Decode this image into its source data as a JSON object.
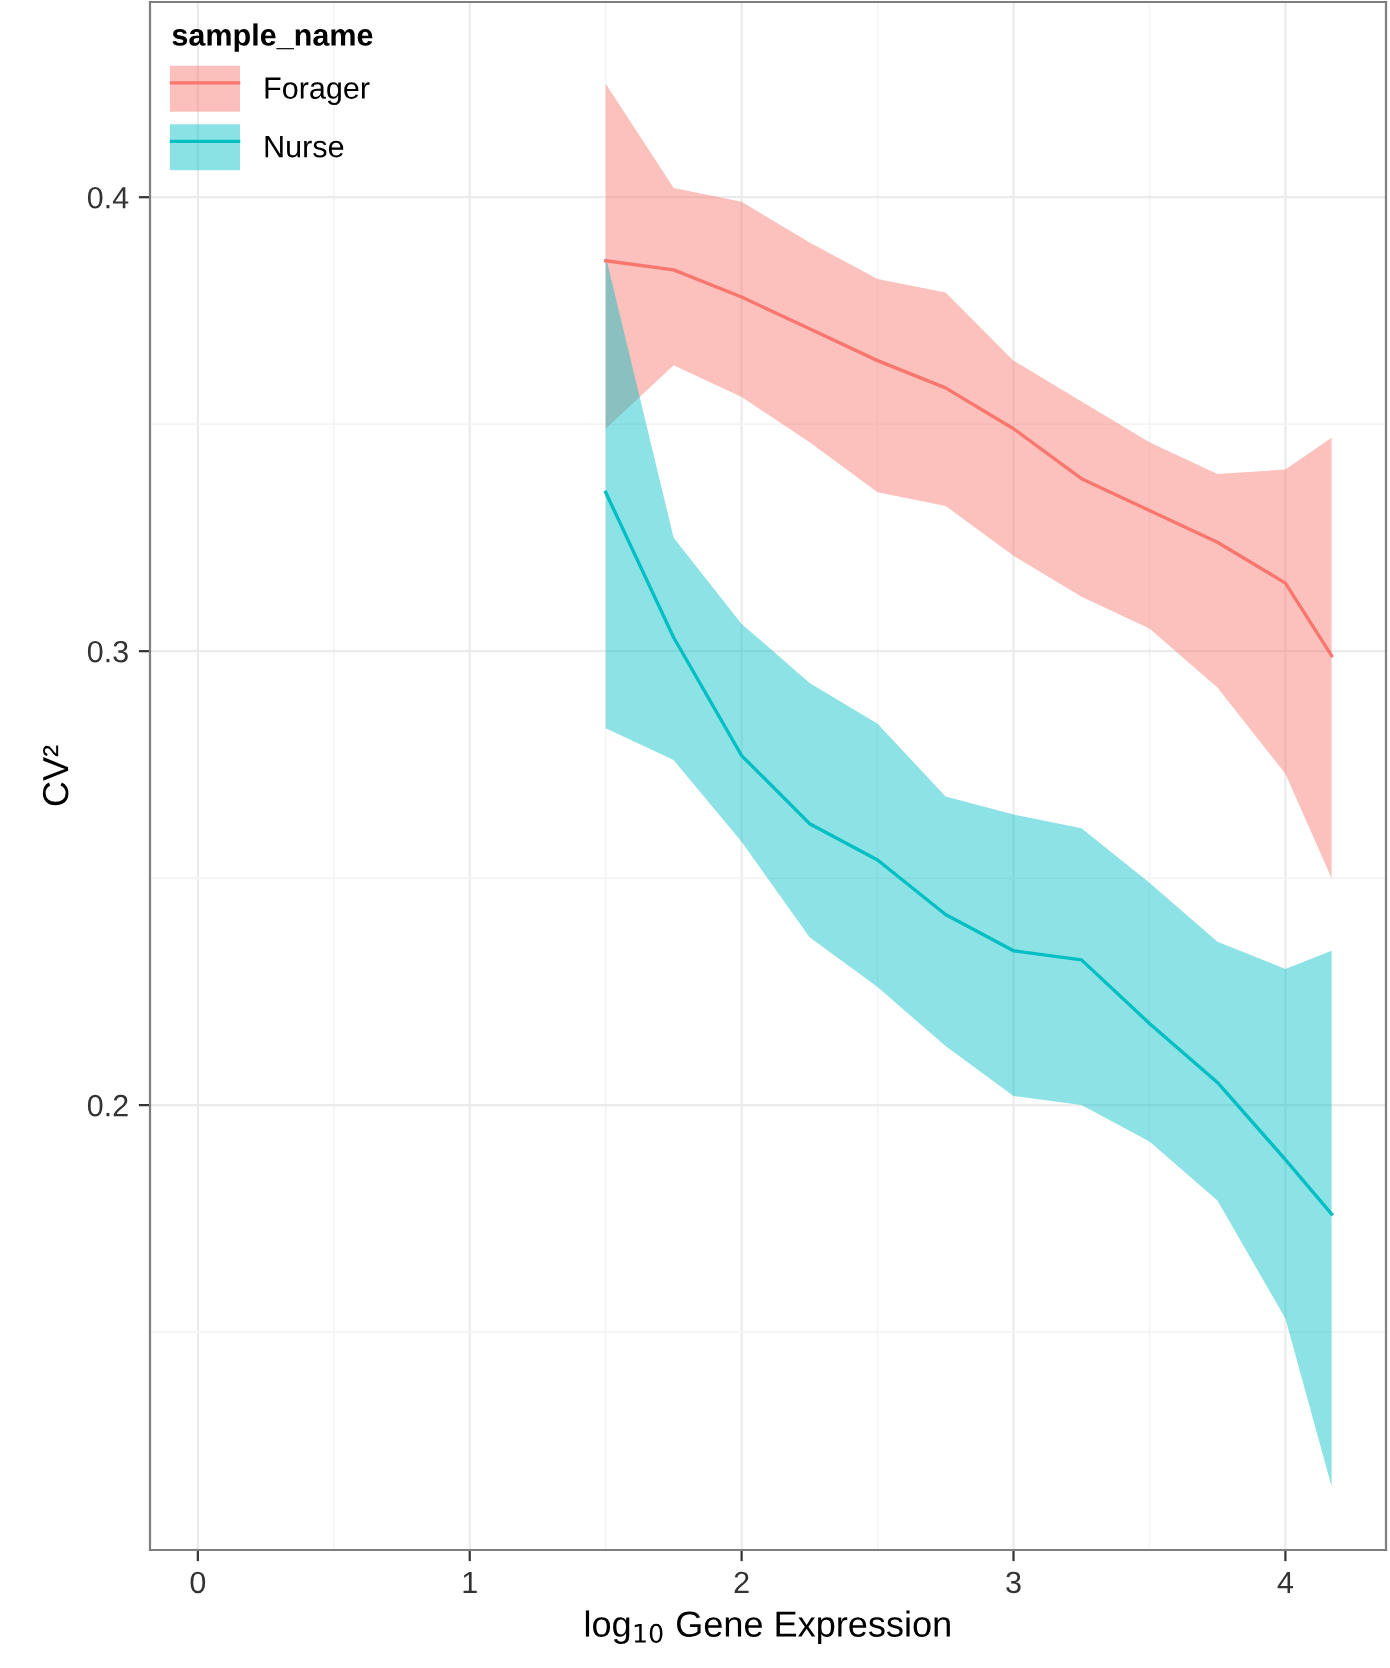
{
  "chart_data": {
    "type": "line",
    "xlabel": "log$_{10}$ Gene Expression",
    "ylabel": "CV²",
    "legend_title": "sample_name",
    "xlim": [
      -0.176,
      4.37
    ],
    "ylim": [
      0.102,
      0.443
    ],
    "xticks": [
      0,
      1,
      2,
      3,
      4
    ],
    "yticks": [
      0.2,
      0.3,
      0.4
    ],
    "grid": true,
    "legend": "top left",
    "series": [
      {
        "name": "Forager",
        "color": "#f8766d",
        "x": [
          1.5,
          1.75,
          2.0,
          2.25,
          2.5,
          2.75,
          3.0,
          3.25,
          3.5,
          3.75,
          4.0,
          4.17
        ],
        "values": [
          0.386,
          0.384,
          0.378,
          0.371,
          0.364,
          0.358,
          0.349,
          0.338,
          0.331,
          0.324,
          0.315,
          0.299
        ],
        "upper": [
          0.425,
          0.402,
          0.399,
          0.39,
          0.382,
          0.379,
          0.364,
          0.355,
          0.346,
          0.339,
          0.34,
          0.347
        ],
        "lower": [
          0.349,
          0.363,
          0.356,
          0.346,
          0.335,
          0.332,
          0.321,
          0.312,
          0.305,
          0.292,
          0.273,
          0.25
        ]
      },
      {
        "name": "Nurse",
        "color": "#00bfc4",
        "x": [
          1.5,
          1.75,
          2.0,
          2.25,
          2.5,
          2.75,
          3.0,
          3.25,
          3.5,
          3.75,
          4.0,
          4.17
        ],
        "values": [
          0.335,
          0.303,
          0.277,
          0.262,
          0.254,
          0.242,
          0.234,
          0.232,
          0.218,
          0.205,
          0.188,
          0.176
        ],
        "upper": [
          0.387,
          0.325,
          0.306,
          0.293,
          0.284,
          0.268,
          0.264,
          0.261,
          0.249,
          0.236,
          0.23,
          0.234
        ],
        "lower": [
          0.283,
          0.276,
          0.258,
          0.237,
          0.226,
          0.213,
          0.202,
          0.2,
          0.192,
          0.179,
          0.153,
          0.116
        ]
      }
    ]
  }
}
